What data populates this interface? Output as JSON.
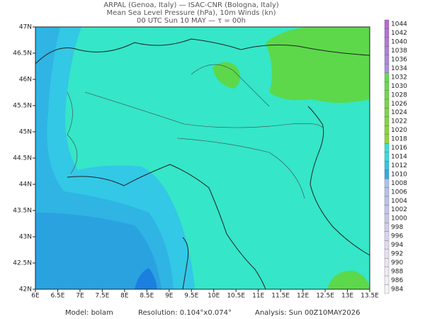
{
  "header": {
    "lines": [
      "ARPAL (Genoa, Italy)  —  ISAC-CNR (Bologna, Italy)",
      "Mean Sea Level Pressure (hPa), 10m Winds (kn)",
      "00 UTC Sun 10 MAY  —  τ = 00h"
    ]
  },
  "map": {
    "lon_labels": [
      "6E",
      "6.5E",
      "7E",
      "7.5E",
      "8E",
      "8.5E",
      "9E",
      "9.5E",
      "10E",
      "10.5E",
      "11E",
      "11.5E",
      "12E",
      "12.5E",
      "13E",
      "13.5E"
    ],
    "lat_labels": [
      "47N",
      "46.5N",
      "46N",
      "45.5N",
      "45N",
      "44.5N",
      "44N",
      "43.5N",
      "43N",
      "42.5N",
      "42N"
    ]
  },
  "colorbar": {
    "labels": [
      1044,
      1042,
      1040,
      1038,
      1036,
      1034,
      1032,
      1030,
      1028,
      1026,
      1024,
      1022,
      1020,
      1018,
      1016,
      1014,
      1012,
      1010,
      1008,
      1006,
      1004,
      1002,
      1000,
      998,
      996,
      994,
      992,
      990,
      988,
      986,
      984
    ]
  },
  "footer": {
    "model": "Model: bolam",
    "resolution": "Resolution: 0.104°x0.074°",
    "analysis": "Analysis: Sun 00Z10MAY2026"
  }
}
